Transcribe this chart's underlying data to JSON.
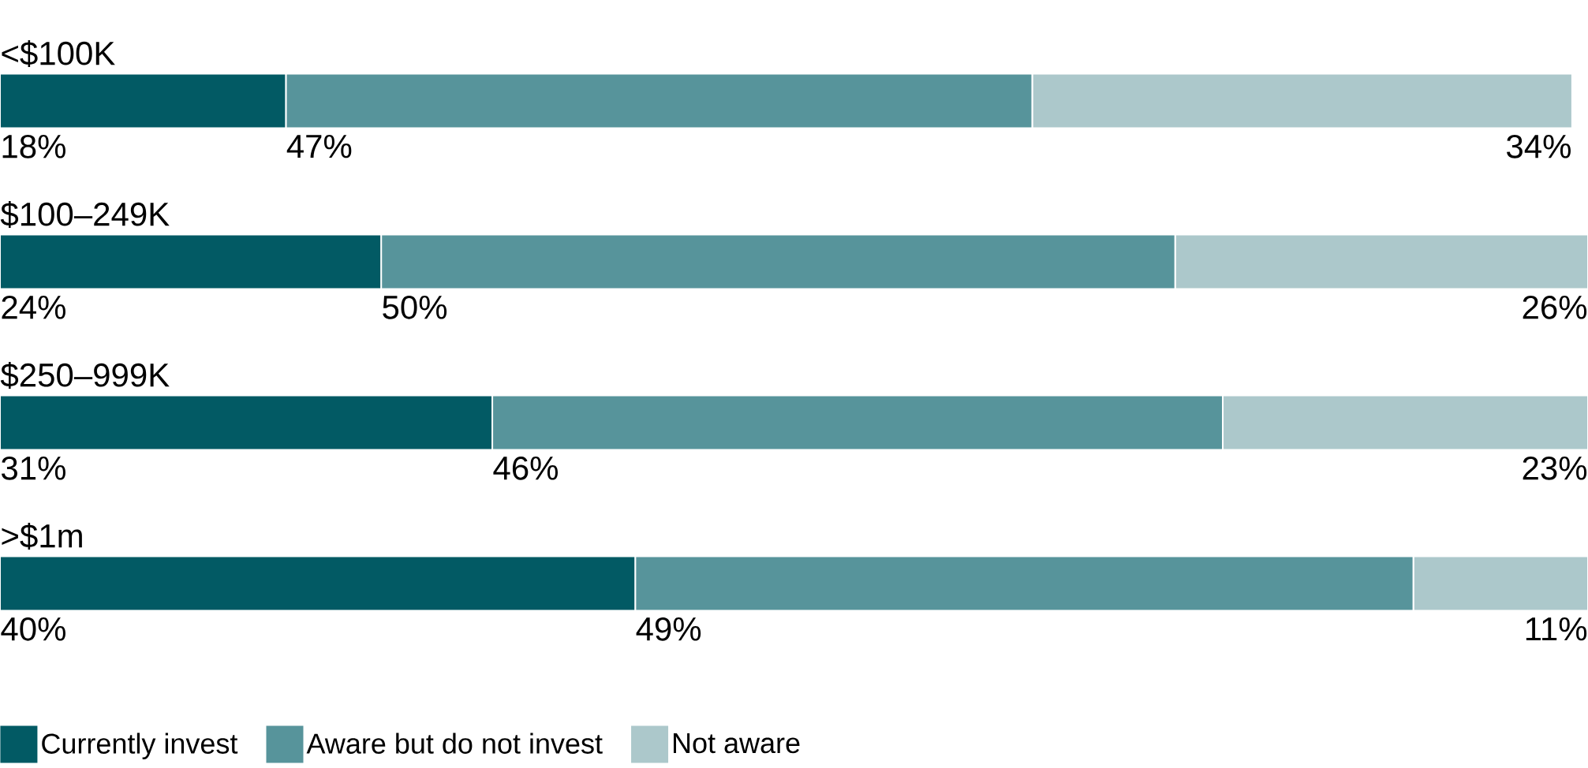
{
  "chart_data": {
    "type": "bar",
    "orientation": "horizontal",
    "stacked": true,
    "legend": "bottom",
    "categories": [
      "<$100K",
      "$100–249K",
      "$250–999K",
      ">$1m"
    ],
    "series": [
      {
        "name": "Currently invest",
        "color": "#025a64",
        "values": [
          18,
          24,
          31,
          40
        ],
        "value_labels": [
          "18%",
          "24%",
          "31%",
          "40%"
        ]
      },
      {
        "name": "Aware but do not invest",
        "color": "#57949b",
        "values": [
          47,
          50,
          46,
          49
        ],
        "value_labels": [
          "47%",
          "50%",
          "46%",
          "49%"
        ]
      },
      {
        "name": "Not aware",
        "color": "#acc8cb",
        "values": [
          34,
          26,
          23,
          11
        ],
        "value_labels": [
          "34%",
          "26%",
          "23%",
          "11%"
        ]
      }
    ]
  }
}
